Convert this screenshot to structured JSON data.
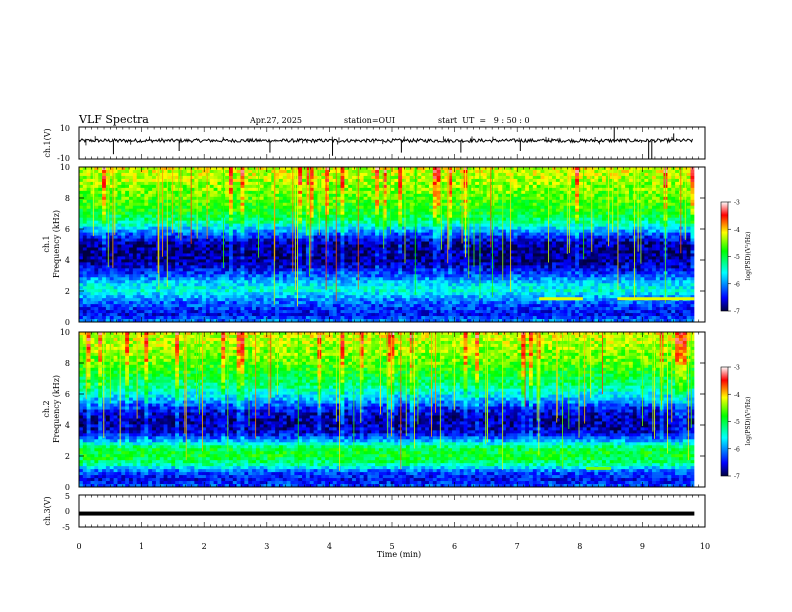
{
  "header": {
    "title": "VLF Spectra",
    "date": "Apr.27, 2025",
    "station": "station=OUI",
    "start": "start  UT  =   9 : 50 : 0"
  },
  "colorscale": {
    "label": "log(PSD)(V²/Hz)",
    "ticks": [
      "-3",
      "-4",
      "-5",
      "-6",
      "-7"
    ],
    "stops": [
      "#ffffff",
      "#ff0000",
      "#ffff00",
      "#00ff00",
      "#00ffff",
      "#0000ff",
      "#000040"
    ]
  },
  "chart_data": [
    {
      "type": "line",
      "panel": "ch1-waveform",
      "ylabel": "ch.1(V)",
      "ylim": [
        -10,
        10
      ],
      "ytick_labels": [
        "10",
        "-10"
      ],
      "x": [
        0,
        1,
        2,
        3,
        4,
        5,
        6,
        7,
        8,
        9,
        9.8
      ],
      "values": [
        1.5,
        1.5,
        1.5,
        1.5,
        1.5,
        1.5,
        1.5,
        1.5,
        1.5,
        1.5,
        1.5
      ],
      "spikes": [
        {
          "t": 0.55,
          "v": -7
        },
        {
          "t": 1.6,
          "v": -5
        },
        {
          "t": 3.05,
          "v": -6
        },
        {
          "t": 4.05,
          "v": -8
        },
        {
          "t": 5.15,
          "v": -6
        },
        {
          "t": 6.1,
          "v": -6
        },
        {
          "t": 7.05,
          "v": -5
        },
        {
          "t": 8.55,
          "v": 10
        },
        {
          "t": 9.1,
          "v": -10
        },
        {
          "t": 9.15,
          "v": -10
        },
        {
          "t": 9.5,
          "v": 6
        }
      ]
    },
    {
      "type": "heatmap",
      "panel": "ch1-spectrogram",
      "ylabel": "ch.1",
      "ylabel2": "Frequency (kHz)",
      "ylim": [
        0,
        10
      ],
      "ytick_labels": [
        "0",
        "2",
        "4",
        "6",
        "8",
        "10"
      ],
      "xlim": [
        0,
        9.83
      ],
      "zlim": [
        -7,
        -3
      ],
      "freq_profile_khz": [
        0,
        0.5,
        1,
        1.5,
        2,
        2.5,
        3,
        3.5,
        4,
        4.5,
        5,
        5.5,
        6,
        6.5,
        7,
        7.5,
        8,
        8.5,
        9,
        9.5,
        10
      ],
      "log_psd_profile": [
        -6.0,
        -6.5,
        -6.3,
        -6.0,
        -5.5,
        -5.7,
        -6.2,
        -6.6,
        -6.8,
        -6.8,
        -6.8,
        -6.4,
        -5.8,
        -5.2,
        -4.9,
        -4.7,
        -4.6,
        -4.5,
        -4.4,
        -4.3,
        -4.2
      ],
      "line_segments": [
        {
          "t0": 7.35,
          "t1": 8.05,
          "f": 1.5,
          "log_psd": -4.2
        },
        {
          "t0": 8.6,
          "t1": 9.83,
          "f": 1.5,
          "log_psd": -4.2
        }
      ]
    },
    {
      "type": "heatmap",
      "panel": "ch2-spectrogram",
      "ylabel": "ch.2",
      "ylabel2": "Frequency (kHz)",
      "ylim": [
        0,
        10
      ],
      "ytick_labels": [
        "0",
        "2",
        "4",
        "6",
        "8",
        "10"
      ],
      "xlim": [
        0,
        9.83
      ],
      "zlim": [
        -7,
        -3
      ],
      "freq_profile_khz": [
        0,
        0.5,
        1,
        1.5,
        2,
        2.5,
        3,
        3.5,
        4,
        4.5,
        5,
        5.5,
        6,
        6.5,
        7,
        7.5,
        8,
        8.5,
        9,
        9.5,
        10
      ],
      "log_psd_profile": [
        -6.2,
        -6.5,
        -6.2,
        -5.2,
        -4.9,
        -5.0,
        -5.9,
        -6.6,
        -6.7,
        -6.7,
        -6.5,
        -6.0,
        -5.6,
        -5.2,
        -5.0,
        -4.8,
        -4.6,
        -4.5,
        -4.4,
        -4.3,
        -4.2
      ],
      "line_segments": [
        {
          "t0": 8.1,
          "t1": 8.5,
          "f": 1.2,
          "log_psd": -4.5
        }
      ]
    },
    {
      "type": "line",
      "panel": "ch3-waveform",
      "ylabel": "ch.3(V)",
      "ylim": [
        -5,
        5
      ],
      "ytick_labels": [
        "5",
        "0",
        "-5"
      ],
      "x": [
        0,
        9.83
      ],
      "values": [
        -0.8,
        -0.8
      ]
    }
  ],
  "xaxis": {
    "label": "Time (min)",
    "ticks": [
      "0",
      "1",
      "2",
      "3",
      "4",
      "5",
      "6",
      "7",
      "8",
      "9",
      "10"
    ],
    "xlim": [
      0,
      10
    ]
  }
}
